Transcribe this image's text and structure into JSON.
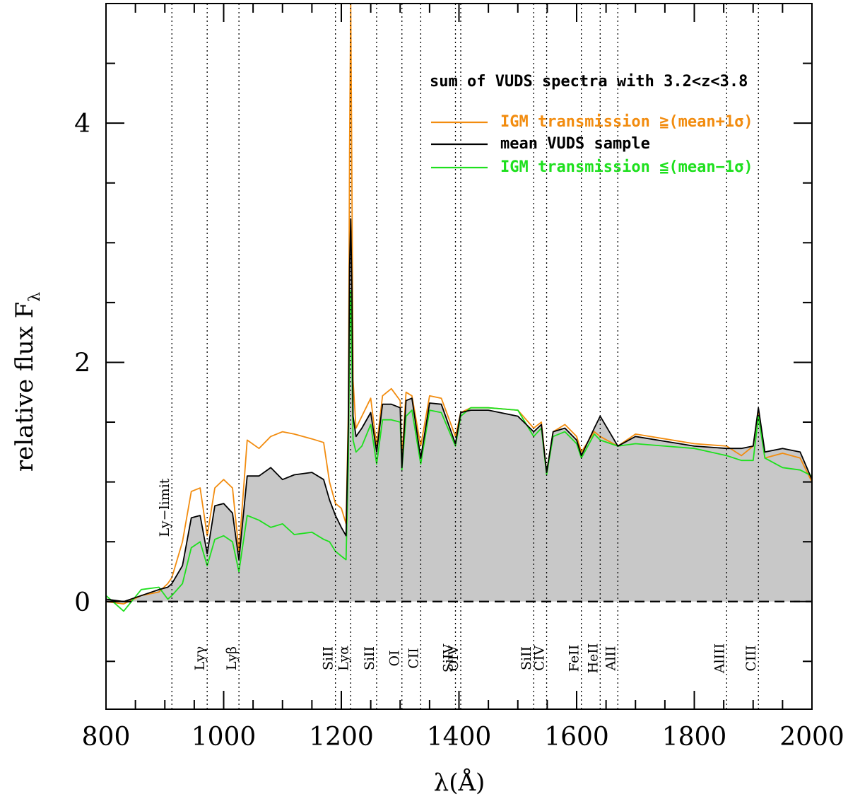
{
  "chart_data": {
    "type": "line",
    "title": "sum of VUDS spectra with 3.2<z<3.8",
    "xlabel": "λ(Å)",
    "ylabel": "relative flux F",
    "ylabel_subscript": "λ",
    "xlim": [
      800,
      2000
    ],
    "ylim": [
      -0.9,
      5.0
    ],
    "x_ticks": [
      800,
      1000,
      1200,
      1400,
      1600,
      1800,
      2000
    ],
    "y_ticks": [
      0,
      2,
      4
    ],
    "x_tick_labels": [
      "800",
      "1000",
      "1200",
      "1400",
      "1600",
      "1800",
      "2000"
    ],
    "y_tick_labels": [
      "0",
      "2",
      "4"
    ],
    "zero_line": 0,
    "annotations": {
      "ly_limit": {
        "wavelength": 912,
        "label": "Ly−limit"
      },
      "lines": [
        {
          "wavelength": 972,
          "label": "Lyγ"
        },
        {
          "wavelength": 1026,
          "label": "Lyβ"
        },
        {
          "wavelength": 1190,
          "label": "SiII"
        },
        {
          "wavelength": 1216,
          "label": "Lyα"
        },
        {
          "wavelength": 1260,
          "label": "SiII"
        },
        {
          "wavelength": 1303,
          "label": "OI"
        },
        {
          "wavelength": 1335,
          "label": "CII"
        },
        {
          "wavelength": 1394,
          "label": "SiIV"
        },
        {
          "wavelength": 1403,
          "label": "OIV"
        },
        {
          "wavelength": 1527,
          "label": "SiII"
        },
        {
          "wavelength": 1549,
          "label": "CIV"
        },
        {
          "wavelength": 1608,
          "label": "FeII"
        },
        {
          "wavelength": 1640,
          "label": "HeII"
        },
        {
          "wavelength": 1670,
          "label": "AlII"
        },
        {
          "wavelength": 1855,
          "label": "AlIII"
        },
        {
          "wavelength": 1909,
          "label": "CIII"
        }
      ]
    },
    "legend": {
      "position": "top-right",
      "entries": [
        {
          "name": "IGM transmission ≧(mean+1σ)",
          "color": "#f28c0f"
        },
        {
          "name": "mean VUDS sample",
          "color": "#000000"
        },
        {
          "name": "IGM transmission ≦(mean−1σ)",
          "color": "#1ee01e"
        }
      ]
    },
    "series": [
      {
        "name": "IGM transmission ≧(mean+1σ)",
        "color": "#f28c0f",
        "x": [
          800,
          830,
          860,
          890,
          905,
          912,
          930,
          945,
          960,
          972,
          985,
          1000,
          1015,
          1026,
          1040,
          1060,
          1080,
          1100,
          1120,
          1150,
          1170,
          1180,
          1190,
          1200,
          1208,
          1212,
          1214,
          1216,
          1218,
          1220,
          1225,
          1235,
          1250,
          1260,
          1270,
          1285,
          1300,
          1303,
          1310,
          1320,
          1335,
          1350,
          1370,
          1394,
          1403,
          1420,
          1450,
          1500,
          1527,
          1540,
          1549,
          1560,
          1580,
          1600,
          1608,
          1630,
          1640,
          1670,
          1700,
          1750,
          1800,
          1855,
          1880,
          1900,
          1909,
          1920,
          1950,
          1980,
          2000
        ],
        "y": [
          0.0,
          -0.02,
          0.05,
          0.08,
          0.15,
          0.2,
          0.5,
          0.92,
          0.95,
          0.55,
          0.95,
          1.02,
          0.95,
          0.42,
          1.35,
          1.28,
          1.38,
          1.42,
          1.4,
          1.36,
          1.33,
          1.0,
          0.82,
          0.78,
          0.65,
          1.6,
          3.8,
          5.0,
          3.5,
          1.85,
          1.45,
          1.55,
          1.7,
          1.3,
          1.72,
          1.78,
          1.68,
          1.2,
          1.75,
          1.72,
          1.3,
          1.72,
          1.7,
          1.38,
          1.58,
          1.62,
          1.62,
          1.6,
          1.45,
          1.5,
          1.08,
          1.42,
          1.48,
          1.38,
          1.25,
          1.42,
          1.38,
          1.3,
          1.4,
          1.36,
          1.32,
          1.3,
          1.22,
          1.3,
          1.6,
          1.2,
          1.24,
          1.2,
          1.0
        ]
      },
      {
        "name": "mean VUDS sample",
        "color": "#000000",
        "x": [
          800,
          830,
          860,
          890,
          905,
          912,
          930,
          945,
          960,
          972,
          985,
          1000,
          1015,
          1026,
          1040,
          1060,
          1080,
          1100,
          1120,
          1150,
          1170,
          1180,
          1190,
          1200,
          1208,
          1212,
          1214,
          1216,
          1218,
          1220,
          1225,
          1235,
          1250,
          1260,
          1270,
          1285,
          1300,
          1303,
          1310,
          1320,
          1335,
          1350,
          1370,
          1394,
          1403,
          1420,
          1450,
          1500,
          1527,
          1540,
          1549,
          1560,
          1580,
          1600,
          1608,
          1630,
          1640,
          1670,
          1700,
          1750,
          1800,
          1855,
          1880,
          1900,
          1909,
          1920,
          1950,
          1980,
          2000
        ],
        "y": [
          0.02,
          0.0,
          0.05,
          0.1,
          0.12,
          0.15,
          0.3,
          0.7,
          0.72,
          0.4,
          0.8,
          0.82,
          0.74,
          0.35,
          1.05,
          1.05,
          1.12,
          1.02,
          1.06,
          1.08,
          1.02,
          0.85,
          0.72,
          0.62,
          0.55,
          1.5,
          2.8,
          3.2,
          2.6,
          1.55,
          1.38,
          1.45,
          1.58,
          1.25,
          1.65,
          1.65,
          1.62,
          1.12,
          1.68,
          1.7,
          1.2,
          1.66,
          1.65,
          1.32,
          1.58,
          1.6,
          1.6,
          1.55,
          1.42,
          1.48,
          1.08,
          1.42,
          1.45,
          1.35,
          1.22,
          1.45,
          1.55,
          1.3,
          1.38,
          1.34,
          1.3,
          1.28,
          1.28,
          1.3,
          1.62,
          1.25,
          1.28,
          1.25,
          1.02
        ]
      },
      {
        "name": "IGM transmission ≦(mean−1σ)",
        "color": "#1ee01e",
        "x": [
          800,
          830,
          860,
          890,
          905,
          912,
          930,
          945,
          960,
          972,
          985,
          1000,
          1015,
          1026,
          1040,
          1060,
          1080,
          1100,
          1120,
          1150,
          1170,
          1180,
          1190,
          1200,
          1208,
          1212,
          1214,
          1216,
          1218,
          1220,
          1225,
          1235,
          1250,
          1260,
          1270,
          1285,
          1300,
          1303,
          1310,
          1320,
          1335,
          1350,
          1370,
          1394,
          1403,
          1420,
          1450,
          1500,
          1527,
          1540,
          1549,
          1560,
          1580,
          1600,
          1608,
          1630,
          1640,
          1670,
          1700,
          1750,
          1800,
          1855,
          1880,
          1900,
          1909,
          1920,
          1950,
          1980,
          2000
        ],
        "y": [
          0.05,
          -0.08,
          0.1,
          0.12,
          0.02,
          0.05,
          0.15,
          0.45,
          0.5,
          0.3,
          0.52,
          0.55,
          0.5,
          0.25,
          0.72,
          0.68,
          0.62,
          0.65,
          0.56,
          0.58,
          0.52,
          0.5,
          0.42,
          0.38,
          0.35,
          1.2,
          2.2,
          2.6,
          2.0,
          1.35,
          1.25,
          1.3,
          1.48,
          1.15,
          1.52,
          1.52,
          1.5,
          1.1,
          1.55,
          1.6,
          1.15,
          1.6,
          1.58,
          1.3,
          1.55,
          1.62,
          1.62,
          1.6,
          1.38,
          1.45,
          1.06,
          1.38,
          1.42,
          1.32,
          1.2,
          1.4,
          1.35,
          1.3,
          1.32,
          1.3,
          1.28,
          1.22,
          1.18,
          1.18,
          1.55,
          1.2,
          1.12,
          1.1,
          1.05
        ]
      }
    ]
  }
}
